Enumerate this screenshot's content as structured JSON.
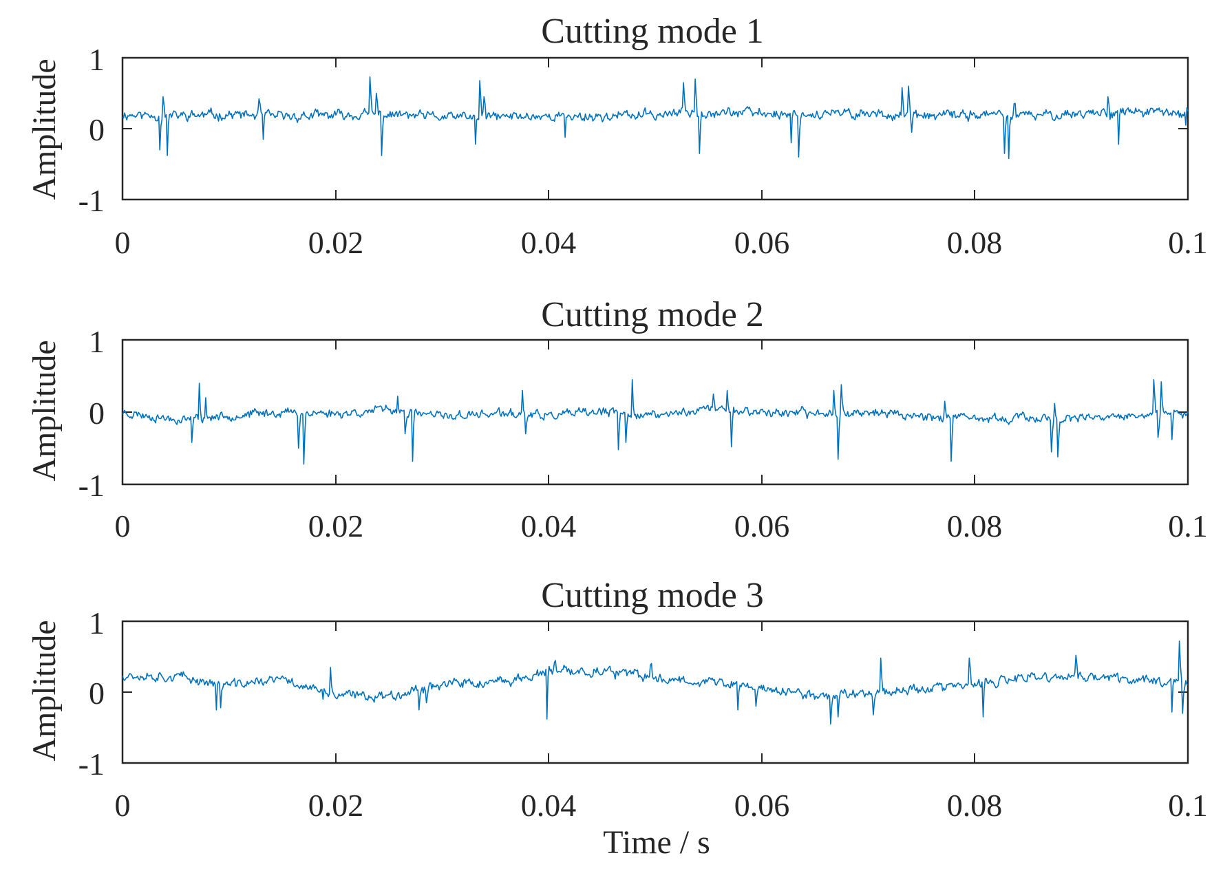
{
  "chart_data": [
    {
      "type": "line",
      "title": "Cutting mode 1",
      "xlabel": "",
      "ylabel": "Amplitude",
      "xlim": [
        0,
        0.1
      ],
      "ylim": [
        -1,
        1
      ],
      "xticks": [
        0,
        0.02,
        0.04,
        0.06,
        0.08,
        0.1
      ],
      "xtick_labels": [
        "0",
        "0.02",
        "0.04",
        "0.06",
        "0.08",
        "0.1"
      ],
      "yticks": [
        -1,
        0,
        1
      ],
      "ytick_labels": [
        "-1",
        "0",
        "1"
      ],
      "series": [
        {
          "name": "Cutting mode 1",
          "color": "#0072BD",
          "n_points": 1000,
          "baseline": 0.2,
          "noise": 0.08,
          "seed": 11,
          "x": [
            0,
            0.005,
            0.01,
            0.015,
            0.02,
            0.025,
            0.03,
            0.035,
            0.04,
            0.045,
            0.05,
            0.055,
            0.06,
            0.065,
            0.07,
            0.075,
            0.08,
            0.085,
            0.09,
            0.095,
            0.1
          ],
          "trend": [
            0.2,
            0.18,
            0.2,
            0.17,
            0.19,
            0.2,
            0.16,
            0.17,
            0.18,
            0.17,
            0.2,
            0.24,
            0.22,
            0.2,
            0.22,
            0.17,
            0.2,
            0.18,
            0.22,
            0.24,
            0.2
          ],
          "spikes": [
            {
              "t": 0.0038,
              "v": 0.45
            },
            {
              "t": 0.0042,
              "v": -0.38
            },
            {
              "t": 0.0035,
              "v": -0.3
            },
            {
              "t": 0.0128,
              "v": 0.42
            },
            {
              "t": 0.0132,
              "v": -0.15
            },
            {
              "t": 0.0232,
              "v": 0.73
            },
            {
              "t": 0.0243,
              "v": -0.38
            },
            {
              "t": 0.0238,
              "v": 0.5
            },
            {
              "t": 0.0335,
              "v": 0.68
            },
            {
              "t": 0.0331,
              "v": -0.22
            },
            {
              "t": 0.0339,
              "v": 0.45
            },
            {
              "t": 0.0415,
              "v": -0.12
            },
            {
              "t": 0.0527,
              "v": 0.65
            },
            {
              "t": 0.0538,
              "v": 0.7
            },
            {
              "t": 0.0542,
              "v": -0.35
            },
            {
              "t": 0.0635,
              "v": -0.4
            },
            {
              "t": 0.0628,
              "v": -0.2
            },
            {
              "t": 0.0732,
              "v": 0.58
            },
            {
              "t": 0.0738,
              "v": 0.6
            },
            {
              "t": 0.0741,
              "v": -0.05
            },
            {
              "t": 0.0832,
              "v": -0.42
            },
            {
              "t": 0.0828,
              "v": -0.35
            },
            {
              "t": 0.0837,
              "v": 0.35
            },
            {
              "t": 0.0935,
              "v": -0.22
            },
            {
              "t": 0.0925,
              "v": 0.45
            },
            {
              "t": 0.0998,
              "v": 0.05
            }
          ]
        }
      ]
    },
    {
      "type": "line",
      "title": "Cutting mode 2",
      "xlabel": "",
      "ylabel": "Amplitude",
      "xlim": [
        0,
        0.1
      ],
      "ylim": [
        -1,
        1
      ],
      "xticks": [
        0,
        0.02,
        0.04,
        0.06,
        0.08,
        0.1
      ],
      "xtick_labels": [
        "0",
        "0.02",
        "0.04",
        "0.06",
        "0.08",
        "0.1"
      ],
      "yticks": [
        -1,
        0,
        1
      ],
      "ytick_labels": [
        "-1",
        "0",
        "1"
      ],
      "series": [
        {
          "name": "Cutting mode 2",
          "color": "#0072BD",
          "n_points": 1000,
          "baseline": -0.05,
          "noise": 0.07,
          "seed": 23,
          "x": [
            0,
            0.005,
            0.01,
            0.015,
            0.02,
            0.025,
            0.03,
            0.035,
            0.04,
            0.045,
            0.05,
            0.055,
            0.06,
            0.065,
            0.07,
            0.075,
            0.08,
            0.085,
            0.09,
            0.095,
            0.1
          ],
          "trend": [
            0.0,
            -0.1,
            -0.05,
            0.0,
            -0.02,
            0.03,
            -0.06,
            -0.02,
            -0.05,
            0.0,
            -0.05,
            0.05,
            0.0,
            -0.02,
            0.0,
            -0.05,
            -0.1,
            -0.08,
            -0.1,
            -0.05,
            -0.02
          ],
          "spikes": [
            {
              "t": 0.0065,
              "v": -0.42
            },
            {
              "t": 0.0072,
              "v": 0.4
            },
            {
              "t": 0.0078,
              "v": 0.2
            },
            {
              "t": 0.0165,
              "v": -0.5
            },
            {
              "t": 0.017,
              "v": -0.72
            },
            {
              "t": 0.0272,
              "v": -0.68
            },
            {
              "t": 0.0265,
              "v": -0.3
            },
            {
              "t": 0.0258,
              "v": 0.22
            },
            {
              "t": 0.0375,
              "v": 0.3
            },
            {
              "t": 0.0378,
              "v": -0.3
            },
            {
              "t": 0.0465,
              "v": -0.52
            },
            {
              "t": 0.0478,
              "v": 0.45
            },
            {
              "t": 0.0472,
              "v": -0.42
            },
            {
              "t": 0.0555,
              "v": 0.25
            },
            {
              "t": 0.0572,
              "v": -0.48
            },
            {
              "t": 0.0568,
              "v": 0.3
            },
            {
              "t": 0.0672,
              "v": -0.65
            },
            {
              "t": 0.0675,
              "v": 0.38
            },
            {
              "t": 0.0668,
              "v": 0.3
            },
            {
              "t": 0.0778,
              "v": -0.68
            },
            {
              "t": 0.0772,
              "v": 0.15
            },
            {
              "t": 0.0878,
              "v": -0.62
            },
            {
              "t": 0.0872,
              "v": -0.55
            },
            {
              "t": 0.0875,
              "v": 0.12
            },
            {
              "t": 0.0968,
              "v": 0.45
            },
            {
              "t": 0.0972,
              "v": -0.35
            },
            {
              "t": 0.0985,
              "v": -0.38
            },
            {
              "t": 0.0975,
              "v": 0.42
            }
          ]
        }
      ]
    },
    {
      "type": "line",
      "title": "Cutting mode 3",
      "xlabel": "Time / s",
      "ylabel": "Amplitude",
      "xlim": [
        0,
        0.1
      ],
      "ylim": [
        -1,
        1
      ],
      "xticks": [
        0,
        0.02,
        0.04,
        0.06,
        0.08,
        0.1
      ],
      "xtick_labels": [
        "0",
        "0.02",
        "0.04",
        "0.06",
        "0.08",
        "0.1"
      ],
      "yticks": [
        -1,
        0,
        1
      ],
      "ytick_labels": [
        "-1",
        "0",
        "1"
      ],
      "series": [
        {
          "name": "Cutting mode 3",
          "color": "#0072BD",
          "n_points": 1000,
          "baseline": 0.1,
          "noise": 0.08,
          "seed": 37,
          "x": [
            0,
            0.005,
            0.01,
            0.015,
            0.02,
            0.025,
            0.03,
            0.035,
            0.04,
            0.045,
            0.05,
            0.055,
            0.06,
            0.065,
            0.07,
            0.075,
            0.08,
            0.085,
            0.09,
            0.095,
            0.1
          ],
          "trend": [
            0.25,
            0.22,
            0.1,
            0.18,
            -0.05,
            -0.05,
            0.12,
            0.12,
            0.28,
            0.3,
            0.2,
            0.15,
            0.05,
            -0.05,
            0.0,
            0.05,
            0.1,
            0.2,
            0.22,
            0.18,
            0.15
          ],
          "spikes": [
            {
              "t": 0.0088,
              "v": -0.25
            },
            {
              "t": 0.0092,
              "v": -0.22
            },
            {
              "t": 0.0195,
              "v": 0.35
            },
            {
              "t": 0.0188,
              "v": -0.1
            },
            {
              "t": 0.0278,
              "v": -0.25
            },
            {
              "t": 0.0285,
              "v": -0.15
            },
            {
              "t": 0.0398,
              "v": -0.38
            },
            {
              "t": 0.0405,
              "v": 0.42
            },
            {
              "t": 0.0495,
              "v": 0.38
            },
            {
              "t": 0.0578,
              "v": -0.25
            },
            {
              "t": 0.0595,
              "v": -0.2
            },
            {
              "t": 0.0665,
              "v": -0.45
            },
            {
              "t": 0.0672,
              "v": -0.35
            },
            {
              "t": 0.0705,
              "v": -0.32
            },
            {
              "t": 0.0712,
              "v": 0.48
            },
            {
              "t": 0.0795,
              "v": 0.48
            },
            {
              "t": 0.0808,
              "v": -0.35
            },
            {
              "t": 0.0895,
              "v": 0.52
            },
            {
              "t": 0.0992,
              "v": 0.72
            },
            {
              "t": 0.0985,
              "v": -0.28
            },
            {
              "t": 0.0995,
              "v": -0.3
            }
          ]
        }
      ]
    }
  ]
}
